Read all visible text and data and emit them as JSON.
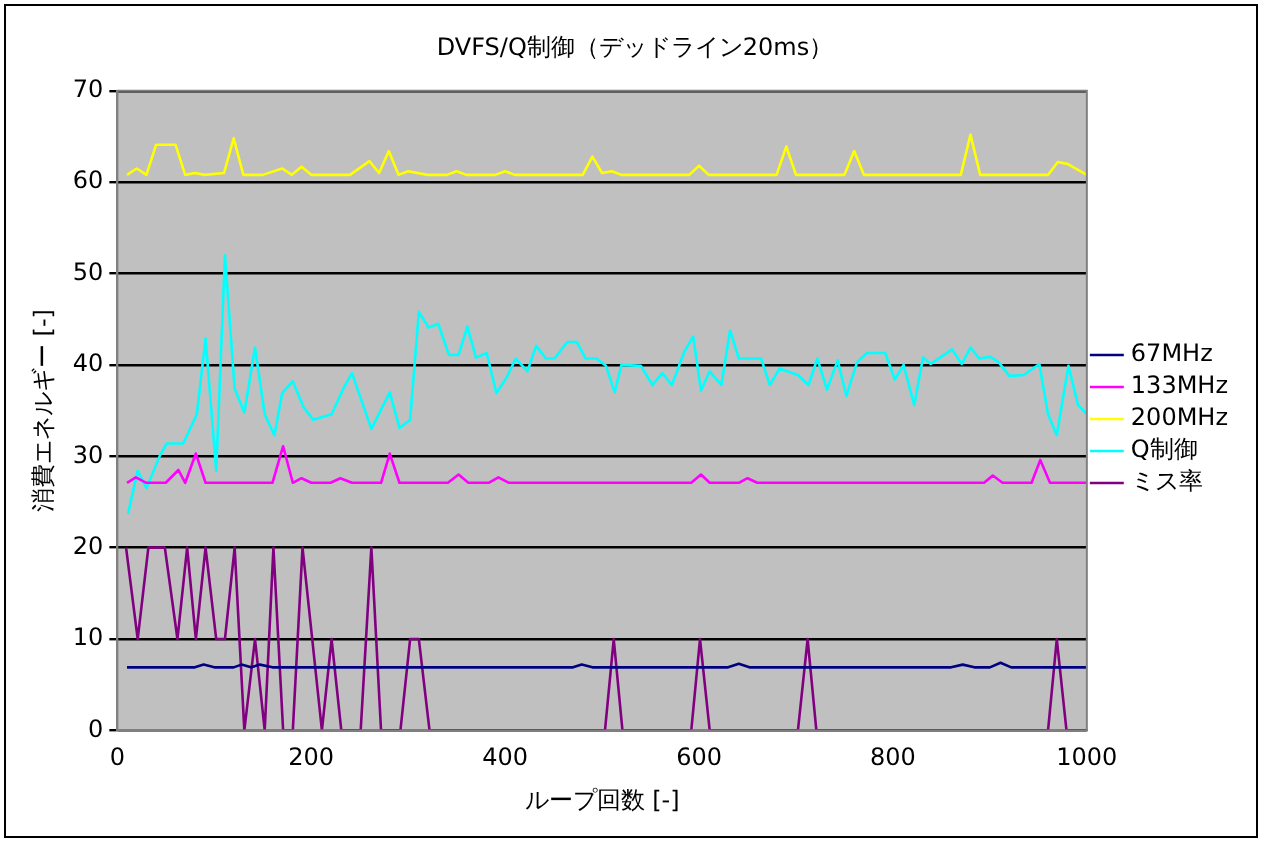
{
  "chart_data": {
    "type": "line",
    "title": "DVFS/Q制御（デッドライン20ms）",
    "xlabel": "ループ回数 [-]",
    "ylabel": "消費エネルギー [-]",
    "xlim": [
      0,
      1000
    ],
    "xticks": [
      0,
      200,
      400,
      600,
      800,
      1000
    ],
    "ylim": [
      0,
      70
    ],
    "yticks": [
      0,
      10,
      20,
      30,
      40,
      50,
      60,
      70
    ],
    "grid": "y",
    "legend": "right",
    "marker": "none",
    "line_style": "solid",
    "series": [
      {
        "name": "67MHz",
        "color": "#000080",
        "x": [
          10,
          80,
          89,
          100,
          120,
          128,
          138,
          147,
          160,
          470,
          479,
          490,
          630,
          641,
          652,
          860,
          872,
          884,
          900,
          911,
          922,
          1000
        ],
        "values": [
          6.9,
          6.9,
          7.2,
          6.9,
          6.9,
          7.2,
          6.9,
          7.2,
          6.9,
          6.9,
          7.2,
          6.9,
          6.9,
          7.3,
          6.9,
          6.9,
          7.2,
          6.9,
          6.9,
          7.4,
          6.9,
          6.9
        ]
      },
      {
        "name": "133MHz",
        "color": "#ff00ff",
        "x": [
          10,
          19,
          30,
          50,
          63,
          70,
          81,
          91,
          160,
          171,
          181,
          190,
          200,
          220,
          230,
          242,
          272,
          281,
          291,
          341,
          352,
          362,
          383,
          393,
          404,
          592,
          602,
          611,
          641,
          650,
          660,
          894,
          903,
          913,
          943,
          952,
          962,
          1000
        ],
        "values": [
          27.1,
          27.7,
          27.1,
          27.1,
          28.5,
          27.1,
          30.3,
          27.1,
          27.1,
          31.1,
          27.1,
          27.6,
          27.1,
          27.1,
          27.6,
          27.1,
          27.1,
          30.3,
          27.1,
          27.1,
          28,
          27.1,
          27.1,
          27.7,
          27.1,
          27.1,
          28,
          27.1,
          27.1,
          27.6,
          27.1,
          27.1,
          27.9,
          27.1,
          27.1,
          29.6,
          27.1,
          27.1
        ]
      },
      {
        "name": "200MHz",
        "color": "#ffff00",
        "x": [
          10,
          20,
          30,
          40,
          60,
          70,
          80,
          90,
          110,
          120,
          130,
          150,
          170,
          180,
          190,
          200,
          240,
          260,
          270,
          280,
          290,
          300,
          320,
          340,
          350,
          360,
          390,
          400,
          410,
          480,
          490,
          500,
          510,
          520,
          590,
          600,
          610,
          680,
          690,
          700,
          750,
          760,
          770,
          870,
          880,
          890,
          960,
          970,
          980,
          1000
        ],
        "values": [
          60.8,
          61.5,
          60.8,
          64.1,
          64.1,
          60.8,
          61,
          60.8,
          61,
          64.8,
          60.8,
          60.8,
          61.5,
          60.8,
          61.7,
          60.8,
          60.8,
          62.3,
          61,
          63.4,
          60.8,
          61.2,
          60.8,
          60.8,
          61.2,
          60.8,
          60.8,
          61.2,
          60.8,
          60.8,
          62.8,
          61,
          61.2,
          60.8,
          60.8,
          61.8,
          60.8,
          60.8,
          63.9,
          60.8,
          60.8,
          63.4,
          60.8,
          60.8,
          65.2,
          60.8,
          60.8,
          62.2,
          62,
          60.8
        ]
      },
      {
        "name": "Q制御",
        "color": "#00ffff",
        "x": [
          11,
          21,
          30,
          44,
          51,
          68,
          82,
          91,
          102,
          111,
          121,
          131,
          142,
          152,
          162,
          170,
          181,
          192,
          202,
          221,
          233,
          242,
          262,
          281,
          291,
          302,
          311,
          321,
          331,
          342,
          352,
          361,
          370,
          381,
          391,
          402,
          411,
          423,
          432,
          442,
          451,
          464,
          474,
          483,
          494,
          504,
          513,
          520,
          540,
          552,
          562,
          572,
          585,
          594,
          602,
          611,
          623,
          632,
          641,
          664,
          673,
          683,
          702,
          713,
          722,
          732,
          743,
          752,
          763,
          773,
          792,
          802,
          811,
          822,
          831,
          839,
          861,
          871,
          880,
          889,
          900,
          909,
          920,
          935,
          951,
          960,
          969,
          981,
          991,
          1000
        ],
        "values": [
          23.7,
          28.4,
          26.5,
          30.1,
          31.4,
          31.4,
          34.6,
          42.9,
          28.4,
          52,
          37.4,
          34.8,
          41.9,
          34.6,
          32.3,
          36.9,
          38.2,
          35.4,
          34,
          34.6,
          37.4,
          39.1,
          33,
          37,
          33.1,
          34,
          45.8,
          44.1,
          44.5,
          41.1,
          41.1,
          44.2,
          40.8,
          41.3,
          36.9,
          38.7,
          40.7,
          39.3,
          42.1,
          40.7,
          40.7,
          42.5,
          42.5,
          40.7,
          40.7,
          39.9,
          37,
          40,
          39.9,
          37.8,
          39.1,
          37.8,
          41.5,
          43.1,
          37.2,
          39.3,
          37.8,
          43.8,
          40.7,
          40.7,
          37.8,
          39.6,
          38.9,
          37.8,
          40.7,
          37.3,
          40.5,
          36.6,
          40.3,
          41.3,
          41.3,
          38.4,
          40,
          35.6,
          40.8,
          40.1,
          41.7,
          40.1,
          41.9,
          40.7,
          40.9,
          40.3,
          38.8,
          38.9,
          40.1,
          34.6,
          32.3,
          39.9,
          35.6,
          34.6
        ]
      },
      {
        "name": "ミス率",
        "color": "#800080",
        "x": [
          9,
          21,
          32,
          49,
          62,
          72,
          81,
          91,
          102,
          111,
          121,
          131,
          142,
          152,
          161,
          171,
          181,
          191,
          211,
          221,
          231,
          251,
          262,
          272,
          292,
          302,
          311,
          322,
          503,
          512,
          521,
          592,
          601,
          611,
          702,
          712,
          721,
          960,
          969,
          979,
          1000
        ],
        "values": [
          20,
          10,
          20,
          20,
          10,
          20,
          10,
          20,
          10,
          10,
          20,
          0,
          10,
          0,
          20,
          0,
          0,
          20,
          0,
          10,
          0,
          0,
          20,
          0,
          0,
          10,
          10,
          0,
          0,
          10,
          0,
          0,
          10,
          0,
          0,
          10,
          0,
          0,
          10,
          0,
          0
        ]
      }
    ]
  }
}
